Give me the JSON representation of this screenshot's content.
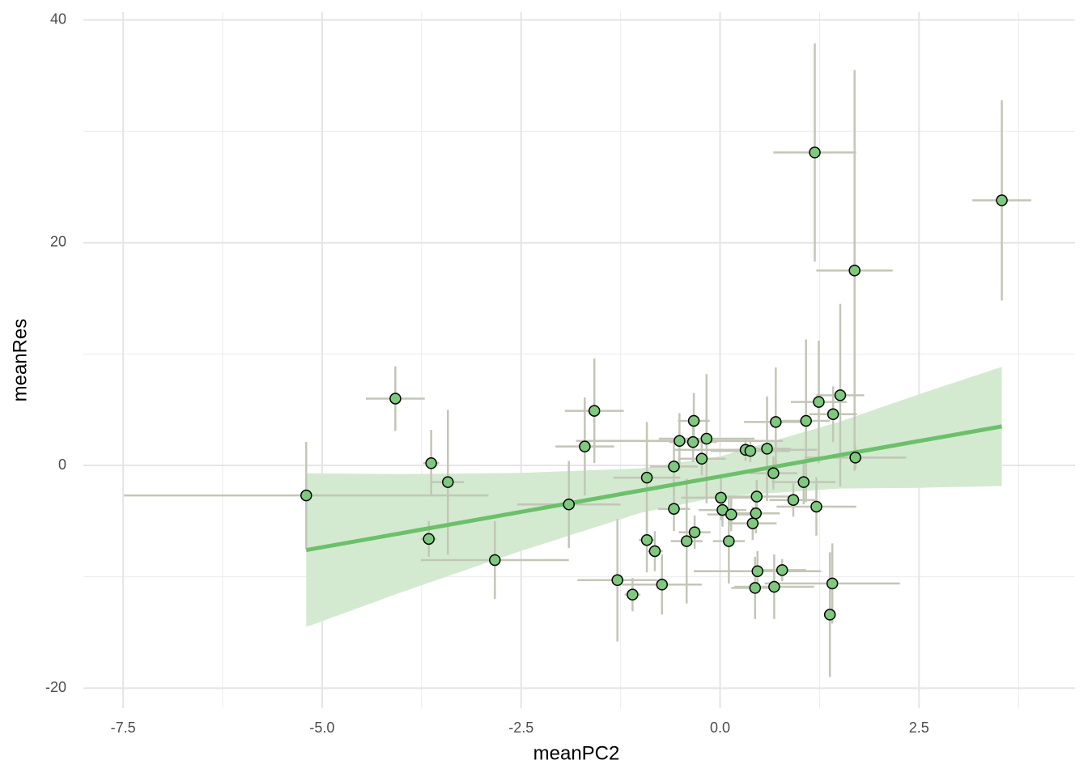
{
  "chart_data": {
    "type": "scatter",
    "x_label": "meanPC2",
    "y_label": "meanRes",
    "xlim": [
      -8,
      4.46
    ],
    "ylim": [
      -21.8,
      40.7
    ],
    "xticks": [
      -7.5,
      {
        "value": -5,
        "label": "-5.0"
      },
      -2.5,
      {
        "value": 0,
        "label": "0.0"
      },
      2.5
    ],
    "yticks": [
      -20,
      0,
      20,
      40
    ],
    "x_minor_ticks": [
      -6.25,
      -3.75,
      -1.25,
      1.25,
      3.75
    ],
    "y_minor_ticks": [
      -10,
      10,
      30
    ],
    "grid": true,
    "series": [
      {
        "color": "#7fc97f",
        "errorbar_color": "#c2c6b6",
        "x": [
          -5.2,
          -4.08,
          -3.63,
          -3.42,
          -3.66,
          -2.83,
          -1.9,
          -1.7,
          -1.58,
          -1.29,
          -1.1,
          -0.92,
          -0.92,
          -0.82,
          -0.73,
          -0.58,
          -0.58,
          -0.51,
          -0.42,
          -0.33,
          -0.34,
          -0.32,
          -0.17,
          -0.23,
          0.01,
          0.03,
          0.14,
          0.11,
          0.32,
          0.38,
          0.59,
          0.41,
          0.45,
          0.46,
          0.47,
          0.44,
          0.68,
          0.67,
          0.7,
          0.78,
          0.92,
          1.05,
          1.08,
          1.19,
          1.21,
          1.24,
          1.41,
          1.38,
          1.42,
          1.51,
          1.69,
          1.7,
          3.54
        ],
        "values": [
          -2.7,
          6.0,
          0.2,
          -1.5,
          -6.6,
          -8.5,
          -3.5,
          1.7,
          4.9,
          -10.3,
          -11.6,
          -1.1,
          -6.7,
          -7.7,
          -10.7,
          -0.1,
          -3.9,
          2.2,
          -6.8,
          4.0,
          2.1,
          -6.0,
          2.4,
          0.6,
          -2.9,
          -4.0,
          -4.4,
          -6.8,
          1.4,
          1.3,
          1.5,
          -5.2,
          -4.3,
          -2.8,
          -9.5,
          -11.0,
          -10.9,
          -0.7,
          3.9,
          -9.4,
          -3.1,
          -1.5,
          4.0,
          28.1,
          -3.7,
          5.7,
          -10.6,
          -13.4,
          4.6,
          6.3,
          17.5,
          0.7,
          23.8
        ],
        "xerr": [
          2.29,
          0.37,
          0.1,
          0.2,
          0.1,
          0.93,
          0.65,
          0.37,
          0.37,
          0.5,
          0.1,
          0.42,
          0.1,
          0.1,
          0.5,
          0.3,
          0.2,
          1.3,
          0.2,
          0.2,
          0.3,
          0.2,
          0.6,
          0.3,
          0.5,
          0.3,
          0.3,
          0.2,
          0.9,
          0.5,
          0.3,
          0.3,
          0.3,
          0.5,
          0.8,
          0.3,
          0.5,
          0.3,
          0.4,
          0.3,
          0.3,
          0.4,
          0.3,
          0.52,
          0.5,
          0.35,
          0.85,
          0.05,
          0.3,
          0.3,
          0.48,
          0.64,
          0.37
        ],
        "yerr": [
          4.8,
          2.9,
          3.0,
          6.5,
          1.6,
          3.5,
          3.9,
          4.4,
          4.7,
          5.5,
          1.5,
          5.0,
          2.9,
          1.8,
          2.7,
          2.5,
          2.0,
          2.5,
          5.6,
          2.5,
          1.8,
          1.5,
          5.8,
          1.5,
          2.0,
          1.5,
          1.5,
          3.8,
          1.0,
          1.0,
          4.7,
          1.5,
          1.8,
          1.5,
          1.8,
          2.8,
          2.9,
          1.5,
          4.9,
          1.0,
          1.5,
          2.0,
          7.3,
          9.8,
          2.6,
          5.5,
          3.6,
          5.6,
          2.5,
          8.2,
          18.0,
          1.0,
          9.0
        ]
      }
    ],
    "fit": {
      "color": "#6cc06a",
      "band_color": "#d3ead0",
      "x": [
        -5.2,
        -4,
        -2.5,
        -1,
        0,
        1.5,
        2.5,
        3.54
      ],
      "values": [
        -7.6,
        -6.08,
        -4.17,
        -2.26,
        -0.99,
        0.92,
        2.19,
        3.5
      ],
      "lower": [
        -14.5,
        -11.38,
        -7.67,
        -4.26,
        -2.79,
        -2.08,
        -2.01,
        -1.85
      ],
      "upper": [
        -0.7,
        -0.78,
        -0.67,
        -0.26,
        0.81,
        3.92,
        6.39,
        8.85
      ]
    }
  }
}
